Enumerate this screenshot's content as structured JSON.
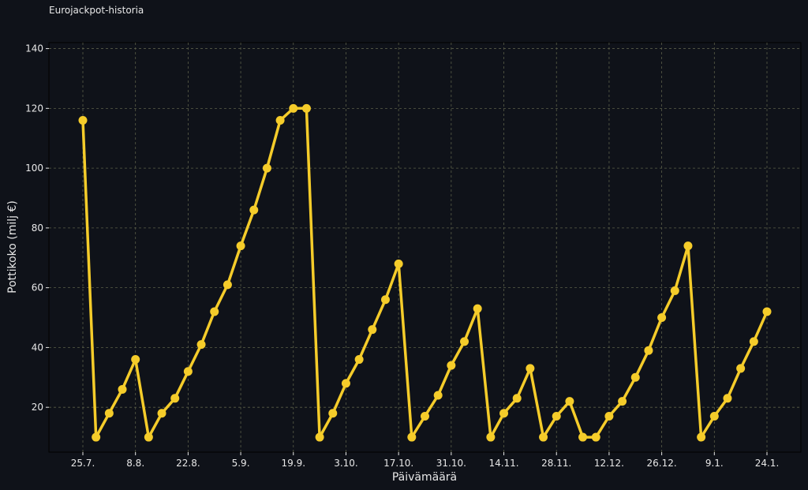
{
  "page": {
    "title": "Eurojackpot-historia"
  },
  "colors": {
    "background": "#0f1219",
    "line": "#f5cc2a",
    "grid": "#5a5e48",
    "text": "#e8e8e8"
  },
  "chart_data": {
    "type": "line",
    "title": "Eurojackpot-historia",
    "xlabel": "Päivämäärä",
    "ylabel": "Pottikoko (milj €)",
    "ylim": [
      5,
      142
    ],
    "yticks": [
      20,
      40,
      60,
      80,
      100,
      120,
      140
    ],
    "grid": true,
    "x_tick_labels": [
      {
        "label": "25.7.",
        "index": 0
      },
      {
        "label": "8.8.",
        "index": 4
      },
      {
        "label": "22.8.",
        "index": 8
      },
      {
        "label": "5.9.",
        "index": 12
      },
      {
        "label": "19.9.",
        "index": 16
      },
      {
        "label": "3.10.",
        "index": 20
      },
      {
        "label": "17.10.",
        "index": 24
      },
      {
        "label": "31.10.",
        "index": 28
      },
      {
        "label": "14.11.",
        "index": 32
      },
      {
        "label": "28.11.",
        "index": 36
      },
      {
        "label": "12.12.",
        "index": 40
      },
      {
        "label": "26.12.",
        "index": 44
      },
      {
        "label": "9.1.",
        "index": 48
      },
      {
        "label": "24.1.",
        "index": 52
      }
    ],
    "series": [
      {
        "values": [
          116,
          10,
          18,
          26,
          36,
          10,
          18,
          23,
          32,
          41,
          52,
          61,
          74,
          86,
          100,
          116,
          120,
          120,
          10,
          18,
          28,
          36,
          46,
          56,
          68,
          10,
          17,
          24,
          34,
          42,
          53,
          10,
          18,
          23,
          33,
          10,
          17,
          22,
          10,
          10,
          17,
          22,
          30,
          39,
          50,
          59,
          74,
          10,
          17,
          23,
          33,
          42,
          52
        ]
      }
    ]
  }
}
